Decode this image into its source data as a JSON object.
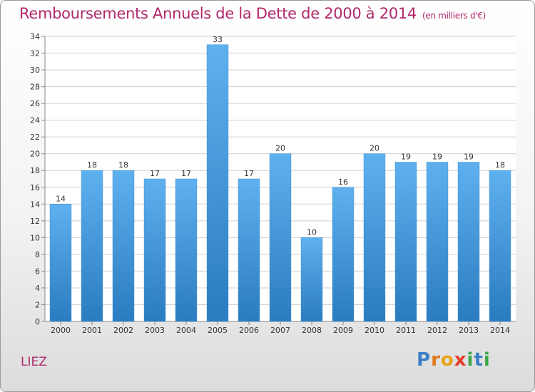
{
  "chart_data": {
    "type": "bar",
    "title": "Remboursements Annuels de la Dette de 2000 à 2014",
    "subtitle": "(en milliers d'€)",
    "xlabel": "",
    "ylabel": "",
    "categories": [
      "2000",
      "2001",
      "2002",
      "2003",
      "2004",
      "2005",
      "2006",
      "2007",
      "2008",
      "2009",
      "2010",
      "2011",
      "2012",
      "2013",
      "2014"
    ],
    "values": [
      14,
      18,
      18,
      17,
      17,
      33,
      17,
      20,
      10,
      16,
      20,
      19,
      19,
      19,
      18
    ],
    "ylim": [
      0,
      34
    ],
    "yticks": [
      0,
      2,
      4,
      6,
      8,
      10,
      12,
      14,
      16,
      18,
      20,
      22,
      24,
      26,
      28,
      30,
      32,
      34
    ],
    "grid": true,
    "legend": "none",
    "bar_color": "#4a9ee0"
  },
  "footer": {
    "place": "LIEZ",
    "logo_letters": [
      "P",
      "r",
      "o",
      "x",
      "i",
      "t",
      "i"
    ],
    "logo_colors": [
      "#3b7fc4",
      "#e07a1e",
      "#e8a317",
      "#e23c2b",
      "#3aa847",
      "#3b7fc4",
      "#3aa847"
    ]
  }
}
